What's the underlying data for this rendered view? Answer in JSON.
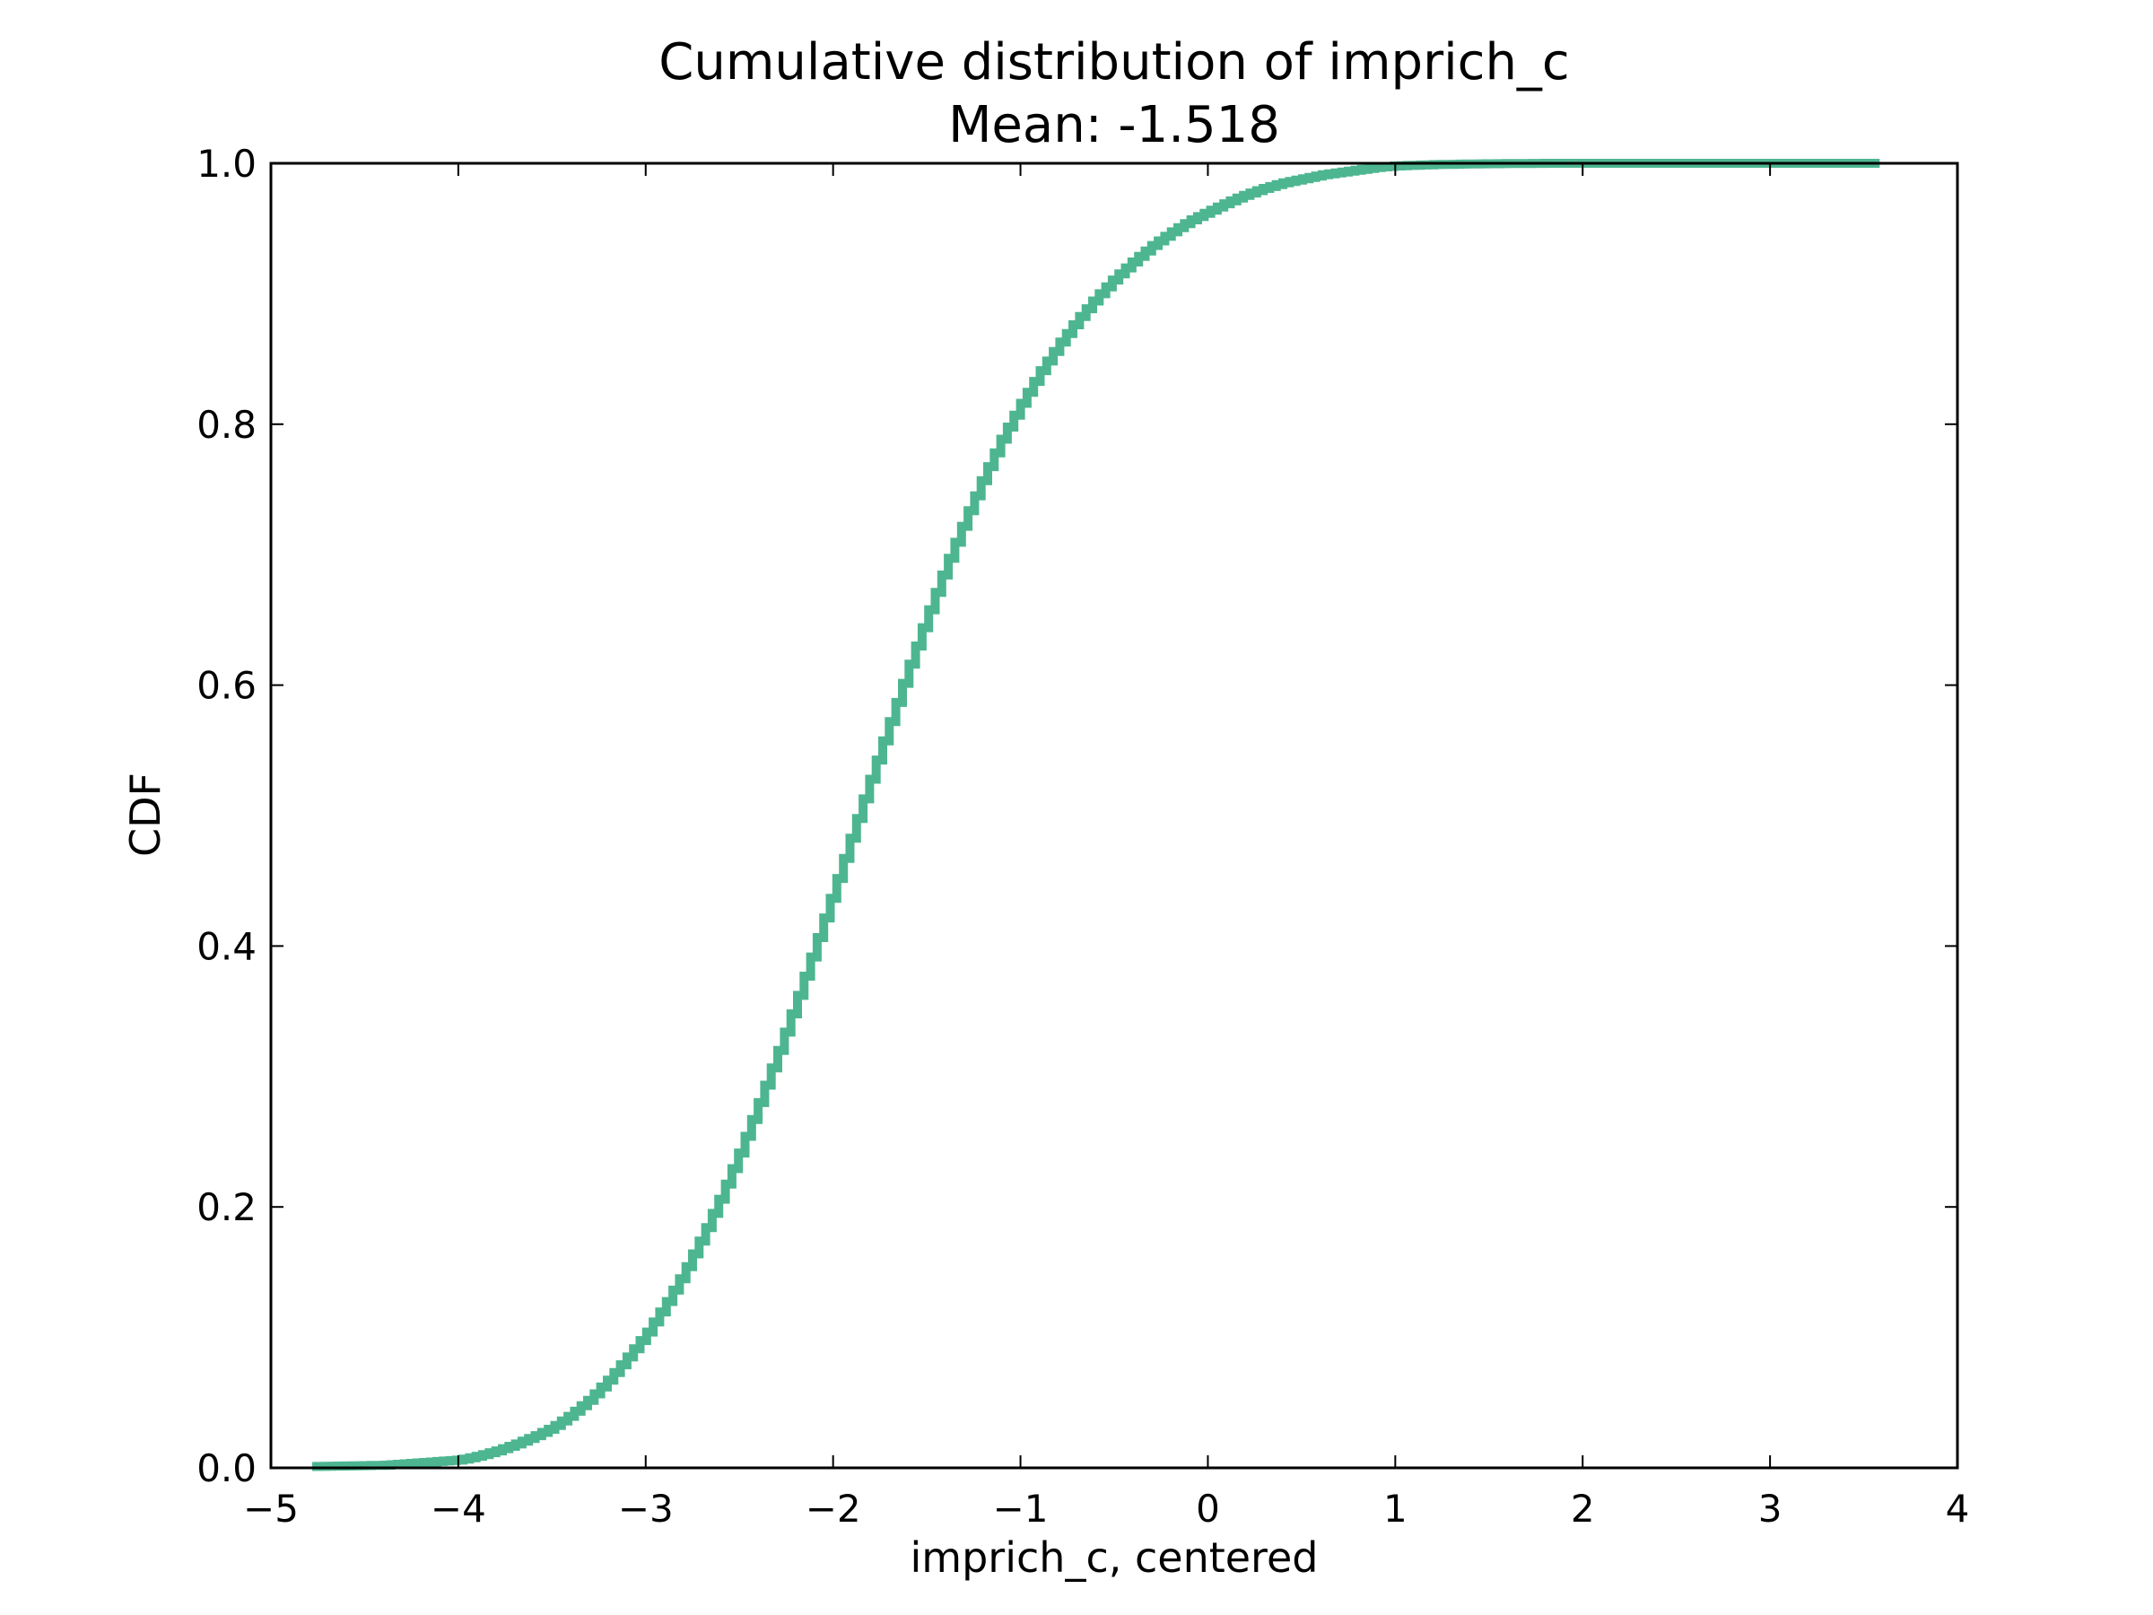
{
  "chart_data": {
    "type": "line",
    "title": "Cumulative distribution of imprich_c",
    "subtitle": "Mean: -1.518",
    "xlabel": "imprich_c, centered",
    "ylabel": "CDF",
    "xlim": [
      -5,
      4
    ],
    "ylim": [
      0,
      1
    ],
    "x_ticks": [
      -5,
      -4,
      -3,
      -2,
      -1,
      0,
      1,
      2,
      3,
      4
    ],
    "x_tick_labels": [
      "−5",
      "−4",
      "−3",
      "−2",
      "−1",
      "0",
      "1",
      "2",
      "3",
      "4"
    ],
    "y_ticks": [
      0.0,
      0.2,
      0.4,
      0.6,
      0.8,
      1.0
    ],
    "y_tick_labels": [
      "0.0",
      "0.2",
      "0.4",
      "0.6",
      "0.8",
      "1.0"
    ],
    "grid": false,
    "line_style": "steps",
    "color": "#4db691",
    "series": [
      {
        "x": [
          -4.78,
          -4.4,
          -4.2,
          -4.0,
          -3.9,
          -3.8,
          -3.7,
          -3.6,
          -3.5,
          -3.4,
          -3.3,
          -3.2,
          -3.1,
          -3.0,
          -2.9,
          -2.8,
          -2.7,
          -2.6,
          -2.5,
          -2.4,
          -2.3,
          -2.2,
          -2.1,
          -2.0,
          -1.9,
          -1.8,
          -1.7,
          -1.6,
          -1.5,
          -1.4,
          -1.3,
          -1.2,
          -1.1,
          -1.0,
          -0.9,
          -0.8,
          -0.7,
          -0.6,
          -0.5,
          -0.4,
          -0.3,
          -0.2,
          -0.1,
          0.0,
          0.1,
          0.2,
          0.3,
          0.4,
          0.5,
          0.6,
          0.7,
          0.8,
          0.9,
          1.0,
          1.2,
          1.4,
          1.6,
          1.8,
          2.0,
          2.5,
          3.0,
          3.6
        ],
        "y": [
          0.001,
          0.002,
          0.004,
          0.006,
          0.009,
          0.013,
          0.018,
          0.024,
          0.031,
          0.041,
          0.053,
          0.068,
          0.085,
          0.103,
          0.125,
          0.15,
          0.178,
          0.209,
          0.243,
          0.28,
          0.318,
          0.358,
          0.4,
          0.443,
          0.487,
          0.53,
          0.572,
          0.614,
          0.654,
          0.692,
          0.727,
          0.76,
          0.79,
          0.816,
          0.84,
          0.861,
          0.88,
          0.897,
          0.912,
          0.925,
          0.937,
          0.947,
          0.956,
          0.963,
          0.97,
          0.976,
          0.981,
          0.985,
          0.988,
          0.991,
          0.993,
          0.995,
          0.997,
          0.998,
          0.999,
          0.9995,
          0.9998,
          1.0,
          1.0,
          1.0,
          1.0,
          1.0
        ]
      }
    ]
  }
}
